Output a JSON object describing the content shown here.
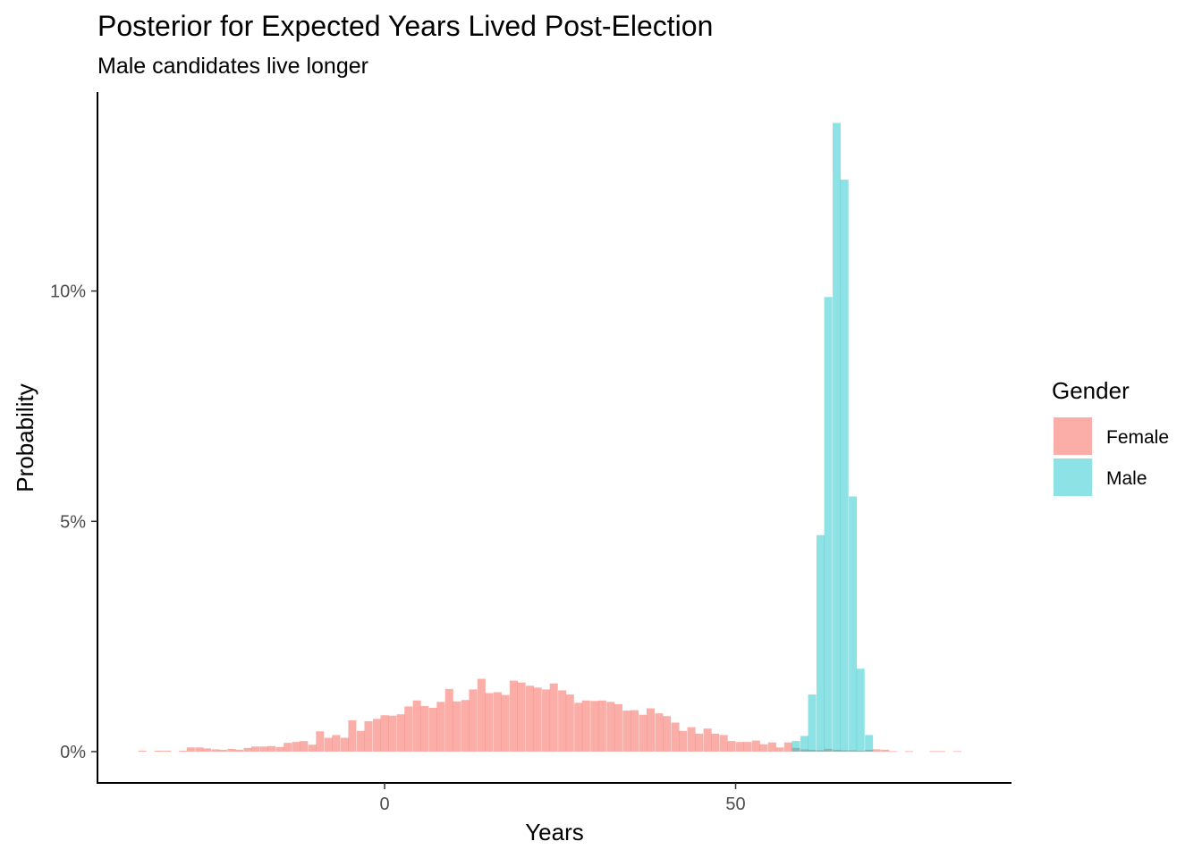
{
  "chart_data": {
    "type": "bar",
    "title": "Posterior for Expected Years Lived Post-Election",
    "subtitle": "Male candidates live longer",
    "xlabel": "Years",
    "ylabel": "Probability",
    "xlim": [
      -40.9,
      89.3
    ],
    "ylim": [
      -0.0068,
      0.1432
    ],
    "xticks": [
      {
        "value": 0,
        "label": "0"
      },
      {
        "value": 50,
        "label": "50"
      }
    ],
    "yticks": [
      {
        "value": 0,
        "label": "0%"
      },
      {
        "value": 0.05,
        "label": "5%"
      },
      {
        "value": 0.1,
        "label": "10%"
      }
    ],
    "bin_width": 1.15,
    "grid": false,
    "legend": {
      "title": "Gender",
      "position": "right"
    },
    "series": [
      {
        "name": "Female",
        "color": "#F8766D",
        "opacity": 0.6,
        "bins": [
          [
            -34.5,
            0.0002
          ],
          [
            -32.2,
            0.0002
          ],
          [
            -31.0,
            0.0002
          ],
          [
            -28.7,
            0.0002
          ],
          [
            -27.6,
            0.0009
          ],
          [
            -26.4,
            0.0009
          ],
          [
            -25.3,
            0.0007
          ],
          [
            -24.1,
            0.0005
          ],
          [
            -23.0,
            0.0004
          ],
          [
            -21.8,
            0.0006
          ],
          [
            -20.7,
            0.0004
          ],
          [
            -19.5,
            0.0008
          ],
          [
            -18.4,
            0.0011
          ],
          [
            -17.2,
            0.0011
          ],
          [
            -16.1,
            0.0012
          ],
          [
            -14.9,
            0.001
          ],
          [
            -13.8,
            0.0019
          ],
          [
            -12.6,
            0.0021
          ],
          [
            -11.5,
            0.0023
          ],
          [
            -10.3,
            0.0015
          ],
          [
            -9.2,
            0.0044
          ],
          [
            -8.0,
            0.003
          ],
          [
            -6.9,
            0.0036
          ],
          [
            -5.7,
            0.003
          ],
          [
            -4.6,
            0.0068
          ],
          [
            -3.4,
            0.0045
          ],
          [
            -2.3,
            0.0066
          ],
          [
            -1.1,
            0.0071
          ],
          [
            0.0,
            0.0079
          ],
          [
            1.1,
            0.0078
          ],
          [
            2.3,
            0.0081
          ],
          [
            3.4,
            0.0098
          ],
          [
            4.6,
            0.0111
          ],
          [
            5.7,
            0.0099
          ],
          [
            6.9,
            0.0095
          ],
          [
            8.0,
            0.0108
          ],
          [
            9.2,
            0.0136
          ],
          [
            10.3,
            0.0109
          ],
          [
            11.5,
            0.0112
          ],
          [
            12.6,
            0.0135
          ],
          [
            13.8,
            0.0158
          ],
          [
            14.9,
            0.0127
          ],
          [
            16.1,
            0.0129
          ],
          [
            17.2,
            0.0123
          ],
          [
            18.4,
            0.0154
          ],
          [
            19.5,
            0.015
          ],
          [
            20.7,
            0.0143
          ],
          [
            21.8,
            0.0139
          ],
          [
            23.0,
            0.0135
          ],
          [
            24.1,
            0.0148
          ],
          [
            25.3,
            0.0133
          ],
          [
            26.4,
            0.0124
          ],
          [
            27.6,
            0.0106
          ],
          [
            28.7,
            0.0111
          ],
          [
            29.9,
            0.011
          ],
          [
            31.0,
            0.0111
          ],
          [
            32.2,
            0.0108
          ],
          [
            33.3,
            0.0103
          ],
          [
            34.5,
            0.0089
          ],
          [
            35.6,
            0.009
          ],
          [
            36.8,
            0.008
          ],
          [
            37.9,
            0.0094
          ],
          [
            39.1,
            0.0083
          ],
          [
            40.2,
            0.0077
          ],
          [
            41.4,
            0.0063
          ],
          [
            42.5,
            0.0045
          ],
          [
            43.7,
            0.0053
          ],
          [
            44.8,
            0.0039
          ],
          [
            46.0,
            0.005
          ],
          [
            47.1,
            0.0039
          ],
          [
            48.3,
            0.0036
          ],
          [
            49.4,
            0.0023
          ],
          [
            50.6,
            0.0021
          ],
          [
            51.7,
            0.0021
          ],
          [
            52.9,
            0.0024
          ],
          [
            54.0,
            0.0016
          ],
          [
            55.2,
            0.002
          ],
          [
            56.3,
            0.0009
          ],
          [
            57.5,
            0.002
          ],
          [
            58.6,
            0.0008
          ],
          [
            59.8,
            0.0005
          ],
          [
            60.9,
            0.0004
          ],
          [
            62.1,
            0.0003
          ],
          [
            63.2,
            0.0006
          ],
          [
            64.4,
            0.0004
          ],
          [
            65.5,
            0.0003
          ],
          [
            66.7,
            0.0003
          ],
          [
            67.8,
            0.0002
          ],
          [
            69.0,
            0.0004
          ],
          [
            70.1,
            0.0005
          ],
          [
            71.3,
            0.0004
          ],
          [
            72.4,
            0.0001
          ],
          [
            74.7,
            0.0001
          ],
          [
            78.2,
            0.0001
          ],
          [
            79.3,
            0.0001
          ],
          [
            81.6,
            0.0001
          ]
        ]
      },
      {
        "name": "Male",
        "color": "#00BFC4",
        "opacity": 0.45,
        "bins": [
          [
            58.6,
            0.0023
          ],
          [
            59.8,
            0.0034
          ],
          [
            60.9,
            0.0124
          ],
          [
            62.1,
            0.047
          ],
          [
            63.2,
            0.0987
          ],
          [
            64.4,
            0.1365
          ],
          [
            65.5,
            0.1242
          ],
          [
            66.7,
            0.0554
          ],
          [
            67.8,
            0.018
          ],
          [
            69.0,
            0.0036
          ]
        ]
      }
    ]
  }
}
